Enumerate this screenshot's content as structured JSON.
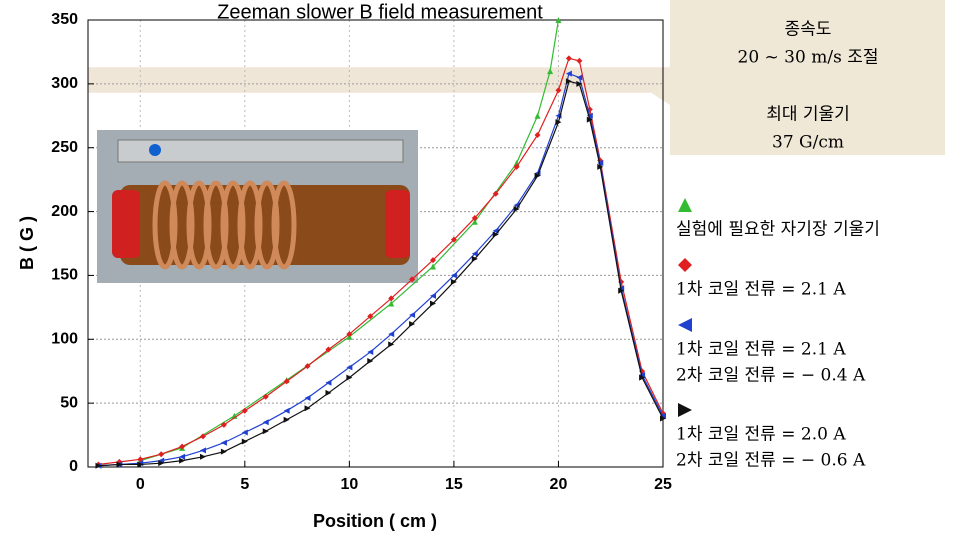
{
  "chart_data": {
    "type": "line",
    "title": "Zeeman slower B field measurement",
    "x_label": "Position ( cm )",
    "y_label": "B ( G )",
    "xlim": [
      -2.5,
      25
    ],
    "xticks": [
      0,
      5,
      10,
      15,
      20,
      25
    ],
    "ylim": [
      0,
      350
    ],
    "yticks": [
      0,
      50,
      100,
      150,
      200,
      250,
      300,
      350
    ],
    "grid": true,
    "shaded_range": [
      293,
      313
    ],
    "annotation": [
      "종속도",
      "20 ~ 30 m/s 조절",
      "최대 기울기",
      "37 G/cm"
    ],
    "series": [
      {
        "name": [
          "실험에 필요한 자기장 기울기"
        ],
        "color": "#33bb33",
        "marker": "triangle-up",
        "x": [
          0,
          2,
          4.5,
          7,
          10,
          12,
          14,
          16,
          18,
          19,
          19.6,
          20
        ],
        "values": [
          5,
          15,
          40,
          68,
          102,
          128,
          157,
          192,
          238,
          275,
          310,
          350
        ]
      },
      {
        "name": [
          "1차 코일 전류 = 2.1 A"
        ],
        "color": "#e02020",
        "marker": "diamond",
        "x": [
          -2,
          -1,
          0,
          1,
          2,
          3,
          4,
          5,
          6,
          7,
          8,
          9,
          10,
          11,
          12,
          13,
          14,
          15,
          16,
          17,
          18,
          19,
          20,
          20.5,
          21,
          21.5,
          22,
          23,
          24,
          25
        ],
        "values": [
          2,
          4,
          6,
          10,
          16,
          24,
          33,
          44,
          55,
          67,
          79,
          92,
          104,
          118,
          132,
          147,
          162,
          178,
          195,
          214,
          235,
          260,
          295,
          320,
          318,
          280,
          240,
          145,
          75,
          42
        ]
      },
      {
        "name": [
          "1차 코일 전류 = 2.1 A",
          "2차 코일 전류 = − 0.4 A"
        ],
        "color": "#2040d0",
        "marker": "triangle-left",
        "x": [
          -2,
          -1,
          0,
          1,
          2,
          3,
          4,
          5,
          6,
          7,
          8,
          9,
          10,
          11,
          12,
          13,
          14,
          15,
          16,
          17,
          18,
          19,
          20,
          20.5,
          21,
          21.5,
          22,
          23,
          24,
          25
        ],
        "values": [
          1,
          2,
          3,
          5,
          8,
          13,
          19,
          27,
          35,
          44,
          54,
          66,
          78,
          90,
          104,
          119,
          134,
          150,
          167,
          185,
          205,
          230,
          275,
          308,
          305,
          275,
          238,
          140,
          72,
          40
        ]
      },
      {
        "name": [
          "1차 코일 전류 = 2.0 A",
          "2차 코일 전류 = − 0.6 A"
        ],
        "color": "#111111",
        "marker": "triangle-right",
        "x": [
          -2,
          -1,
          0,
          1,
          2,
          3,
          4,
          5,
          6,
          7,
          8,
          9,
          10,
          11,
          12,
          13,
          14,
          15,
          16,
          17,
          18,
          19,
          20,
          20.5,
          21,
          21.5,
          22,
          23,
          24,
          25
        ],
        "values": [
          1,
          2,
          2,
          3,
          5,
          8,
          12,
          20,
          28,
          37,
          46,
          58,
          70,
          83,
          96,
          112,
          128,
          145,
          163,
          182,
          202,
          228,
          270,
          302,
          300,
          272,
          235,
          138,
          70,
          38
        ]
      }
    ]
  }
}
